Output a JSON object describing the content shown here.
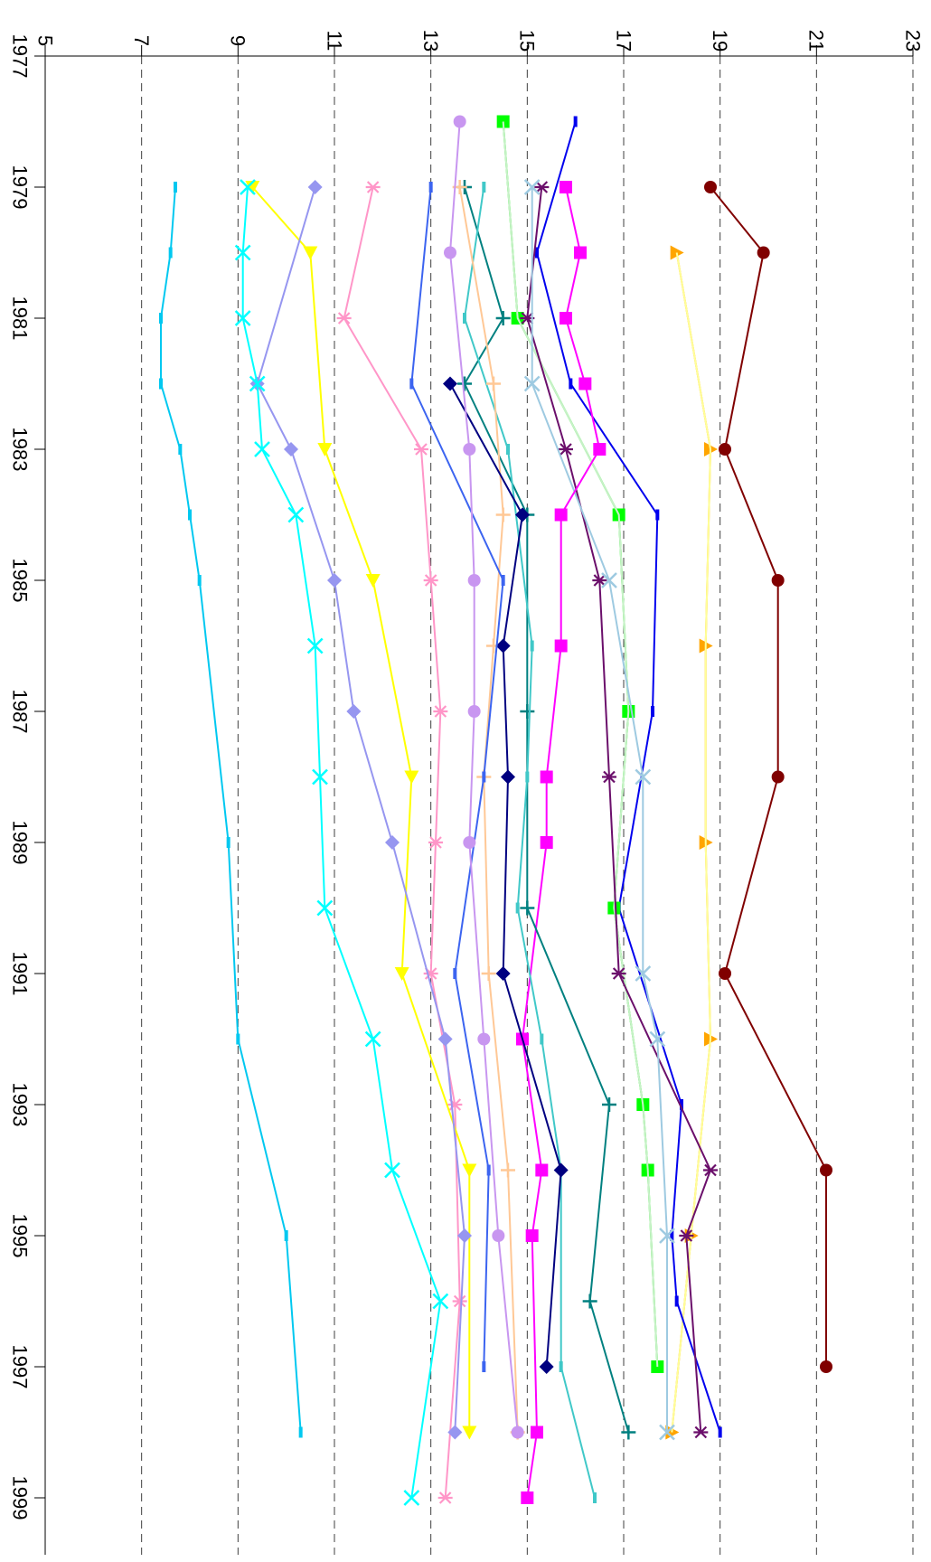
{
  "chart_data": {
    "type": "line",
    "orientation": "rotated-90",
    "title": "",
    "xlabel": "",
    "ylabel": "",
    "xlim": [
      1977,
      1999.8
    ],
    "ylim": [
      5,
      23
    ],
    "x_ticks": [
      1977,
      1979,
      1981,
      1983,
      1985,
      1987,
      1989,
      1991,
      1993,
      1995,
      1997,
      1999
    ],
    "x_tick_labels": [
      "1977",
      "1979",
      "1981",
      "1983",
      "1985",
      "1987",
      "1989",
      "1991",
      "1993",
      "1995",
      "1997",
      "1999"
    ],
    "y_ticks": [
      5,
      7,
      9,
      11,
      13,
      15,
      17,
      19,
      21,
      23
    ],
    "y_tick_labels": [
      "5",
      "7",
      "9",
      "11",
      "13",
      "15",
      "17",
      "19",
      "21",
      "23"
    ],
    "grid": "horizontal-dashed",
    "series": [
      {
        "color": "#800000",
        "marker": "circle",
        "points": [
          [
            1979,
            18.8
          ],
          [
            1980,
            19.9
          ],
          [
            1983,
            19.1
          ],
          [
            1985,
            20.2
          ],
          [
            1988,
            20.2
          ],
          [
            1991,
            19.1
          ],
          [
            1994,
            21.2
          ],
          [
            1997,
            21.2
          ]
        ]
      },
      {
        "color": "#ffa500",
        "marker": "triangle-down",
        "points": [
          [
            1980,
            18.1
          ],
          [
            1983,
            18.8
          ],
          [
            1986,
            18.7
          ],
          [
            1989,
            18.7
          ],
          [
            1992,
            18.8
          ],
          [
            1995,
            18.4
          ],
          [
            1998,
            18.0
          ]
        ]
      },
      {
        "color": "#ffff99",
        "marker": "none",
        "points": [
          [
            1980,
            18.1
          ],
          [
            1983,
            18.8
          ],
          [
            1986,
            18.7
          ],
          [
            1989,
            18.7
          ],
          [
            1992,
            18.8
          ],
          [
            1995,
            18.4
          ],
          [
            1998,
            18.0
          ]
        ]
      },
      {
        "color": "#0000ee",
        "marker": "dash",
        "points": [
          [
            1978,
            16.0
          ],
          [
            1980,
            15.2
          ],
          [
            1982,
            15.9
          ],
          [
            1984,
            17.7
          ],
          [
            1987,
            17.6
          ],
          [
            1990,
            16.9
          ],
          [
            1993,
            18.2
          ],
          [
            1995,
            18.0
          ],
          [
            1996,
            18.1
          ],
          [
            1998,
            19.0
          ]
        ]
      },
      {
        "color": "#00ff00",
        "marker": "square",
        "points": [
          [
            1978,
            14.5
          ],
          [
            1981,
            14.8
          ],
          [
            1984,
            16.9
          ],
          [
            1987,
            17.1
          ],
          [
            1990,
            16.8
          ],
          [
            1993,
            17.4
          ],
          [
            1994,
            17.5
          ],
          [
            1997,
            17.7
          ]
        ]
      },
      {
        "color": "#c8f0c8",
        "marker": "none",
        "points": [
          [
            1978,
            14.5
          ],
          [
            1981,
            14.8
          ],
          [
            1984,
            16.9
          ],
          [
            1987,
            17.1
          ],
          [
            1990,
            16.8
          ],
          [
            1993,
            17.4
          ],
          [
            1994,
            17.5
          ],
          [
            1997,
            17.7
          ]
        ]
      },
      {
        "color": "#6b0f6b",
        "marker": "asterisk",
        "points": [
          [
            1979,
            15.3
          ],
          [
            1981,
            15.0
          ],
          [
            1983,
            15.8
          ],
          [
            1985,
            16.5
          ],
          [
            1988,
            16.7
          ],
          [
            1991,
            16.9
          ],
          [
            1994,
            18.8
          ],
          [
            1995,
            18.3
          ],
          [
            1998,
            18.6
          ]
        ]
      },
      {
        "color": "#9ecae1",
        "marker": "x",
        "points": [
          [
            1979,
            15.1
          ],
          [
            1982,
            15.1
          ],
          [
            1985,
            16.7
          ],
          [
            1988,
            17.4
          ],
          [
            1991,
            17.4
          ],
          [
            1992,
            17.7
          ],
          [
            1995,
            17.9
          ],
          [
            1998,
            17.9
          ]
        ]
      },
      {
        "color": "#ff00ff",
        "marker": "square",
        "points": [
          [
            1979,
            15.8
          ],
          [
            1980,
            16.1
          ],
          [
            1981,
            15.8
          ],
          [
            1982,
            16.2
          ],
          [
            1983,
            16.5
          ],
          [
            1984,
            15.7
          ],
          [
            1986,
            15.7
          ],
          [
            1988,
            15.4
          ],
          [
            1989,
            15.4
          ],
          [
            1992,
            14.9
          ],
          [
            1994,
            15.3
          ],
          [
            1995,
            15.1
          ],
          [
            1998,
            15.2
          ],
          [
            1999,
            15.0
          ]
        ]
      },
      {
        "color": "#008080",
        "marker": "plus",
        "points": [
          [
            1979,
            13.7
          ],
          [
            1981,
            14.5
          ],
          [
            1982,
            13.7
          ],
          [
            1984,
            15.0
          ],
          [
            1987,
            15.0
          ],
          [
            1990,
            15.0
          ],
          [
            1993,
            16.7
          ],
          [
            1996,
            16.3
          ],
          [
            1998,
            17.1
          ]
        ]
      },
      {
        "color": "#40c8c8",
        "marker": "dash",
        "points": [
          [
            1979,
            14.1
          ],
          [
            1981,
            13.7
          ],
          [
            1983,
            14.6
          ],
          [
            1986,
            15.1
          ],
          [
            1988,
            15.0
          ],
          [
            1990,
            14.8
          ],
          [
            1992,
            15.3
          ],
          [
            1994,
            15.7
          ],
          [
            1997,
            15.7
          ],
          [
            1999,
            16.4
          ]
        ]
      },
      {
        "color": "#ffc896",
        "marker": "plus",
        "points": [
          [
            1979,
            13.6
          ],
          [
            1982,
            14.3
          ],
          [
            1984,
            14.5
          ],
          [
            1986,
            14.3
          ],
          [
            1988,
            14.1
          ],
          [
            1991,
            14.2
          ],
          [
            1994,
            14.6
          ],
          [
            1998,
            14.8
          ]
        ]
      },
      {
        "color": "#000080",
        "marker": "diamond",
        "points": [
          [
            1982,
            13.4
          ],
          [
            1984,
            14.9
          ],
          [
            1986,
            14.5
          ],
          [
            1988,
            14.6
          ],
          [
            1991,
            14.5
          ],
          [
            1994,
            15.7
          ],
          [
            1997,
            15.4
          ]
        ]
      },
      {
        "color": "#3c64f0",
        "marker": "dash",
        "points": [
          [
            1979,
            13.0
          ],
          [
            1982,
            12.6
          ],
          [
            1985,
            14.5
          ],
          [
            1988,
            14.1
          ],
          [
            1991,
            13.5
          ],
          [
            1994,
            14.2
          ],
          [
            1997,
            14.1
          ]
        ]
      },
      {
        "color": "#c896f0",
        "marker": "circle",
        "points": [
          [
            1978,
            13.6
          ],
          [
            1980,
            13.4
          ],
          [
            1983,
            13.8
          ],
          [
            1985,
            13.9
          ],
          [
            1987,
            13.9
          ],
          [
            1989,
            13.8
          ],
          [
            1992,
            14.1
          ],
          [
            1995,
            14.4
          ],
          [
            1998,
            14.8
          ]
        ]
      },
      {
        "color": "#ff96c8",
        "marker": "asterisk",
        "points": [
          [
            1979,
            11.8
          ],
          [
            1981,
            11.2
          ],
          [
            1983,
            12.8
          ],
          [
            1985,
            13.0
          ],
          [
            1987,
            13.2
          ],
          [
            1989,
            13.1
          ],
          [
            1991,
            13.0
          ],
          [
            1993,
            13.5
          ],
          [
            1996,
            13.6
          ],
          [
            1999,
            13.3
          ]
        ]
      },
      {
        "color": "#ffff00",
        "marker": "triangle-right",
        "points": [
          [
            1979,
            9.3
          ],
          [
            1980,
            10.5
          ],
          [
            1983,
            10.8
          ],
          [
            1985,
            11.8
          ],
          [
            1988,
            12.6
          ],
          [
            1991,
            12.4
          ],
          [
            1994,
            13.8
          ],
          [
            1998,
            13.8
          ]
        ]
      },
      {
        "color": "#9696f0",
        "marker": "diamond",
        "points": [
          [
            1979,
            10.6
          ],
          [
            1982,
            9.4
          ],
          [
            1983,
            10.1
          ],
          [
            1985,
            11.0
          ],
          [
            1987,
            11.4
          ],
          [
            1989,
            12.2
          ],
          [
            1992,
            13.3
          ],
          [
            1995,
            13.7
          ],
          [
            1998,
            13.5
          ]
        ]
      },
      {
        "color": "#00ffff",
        "marker": "x",
        "points": [
          [
            1979,
            9.2
          ],
          [
            1980,
            9.1
          ],
          [
            1981,
            9.1
          ],
          [
            1982,
            9.4
          ],
          [
            1983,
            9.5
          ],
          [
            1984,
            10.2
          ],
          [
            1986,
            10.6
          ],
          [
            1988,
            10.7
          ],
          [
            1990,
            10.8
          ],
          [
            1992,
            11.8
          ],
          [
            1994,
            12.2
          ],
          [
            1996,
            13.2
          ],
          [
            1999,
            12.6
          ]
        ]
      },
      {
        "color": "#00c8f0",
        "marker": "dash",
        "points": [
          [
            1979,
            7.7
          ],
          [
            1980,
            7.6
          ],
          [
            1981,
            7.4
          ],
          [
            1982,
            7.4
          ],
          [
            1983,
            7.8
          ],
          [
            1984,
            8.0
          ],
          [
            1985,
            8.2
          ],
          [
            1989,
            8.8
          ],
          [
            1992,
            9.0
          ],
          [
            1995,
            10.0
          ],
          [
            1998,
            10.3
          ]
        ]
      }
    ]
  }
}
